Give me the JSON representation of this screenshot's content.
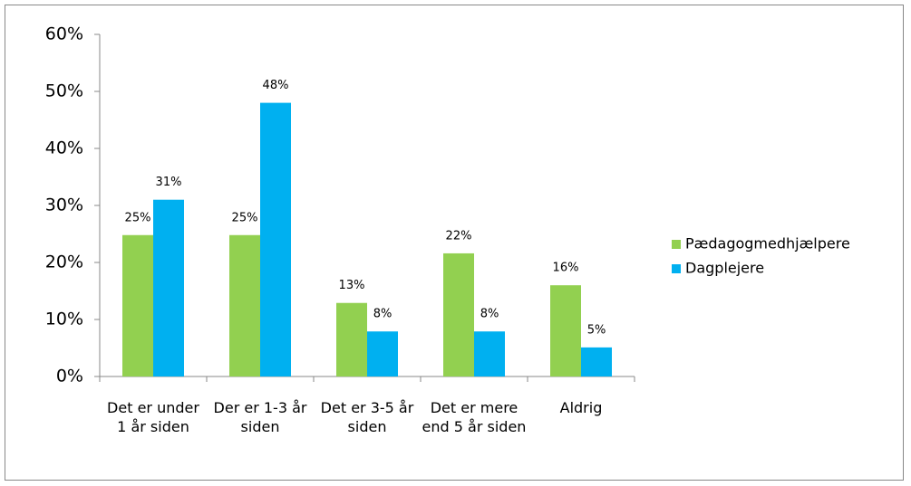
{
  "chart_data": {
    "type": "bar",
    "categories": [
      "Det er under 1 år siden",
      "Der er 1-3 år siden",
      "Det er 3-5 år siden",
      "Det er mere end 5 år siden",
      "Aldrig"
    ],
    "series": [
      {
        "name": "Pædagogmedhjælpere",
        "color": "#92d050",
        "values": [
          24.8,
          24.8,
          12.9,
          21.6,
          16.0
        ],
        "value_labels": [
          "25%",
          "25%",
          "13%",
          "22%",
          "16%"
        ]
      },
      {
        "name": "Dagplejere",
        "color": "#00b0f0",
        "values": [
          31,
          48,
          7.9,
          7.9,
          5.1
        ],
        "value_labels": [
          "31%",
          "48%",
          "8%",
          "8%",
          "5%"
        ]
      }
    ],
    "ylim": [
      0,
      60
    ],
    "yticks": [
      {
        "value": 0,
        "label": "0%"
      },
      {
        "value": 10,
        "label": "10%"
      },
      {
        "value": 20,
        "label": "20%"
      },
      {
        "value": 30,
        "label": "30%"
      },
      {
        "value": 40,
        "label": "40%"
      },
      {
        "value": 50,
        "label": "50%"
      },
      {
        "value": 60,
        "label": "60%"
      }
    ],
    "legend": "right"
  }
}
